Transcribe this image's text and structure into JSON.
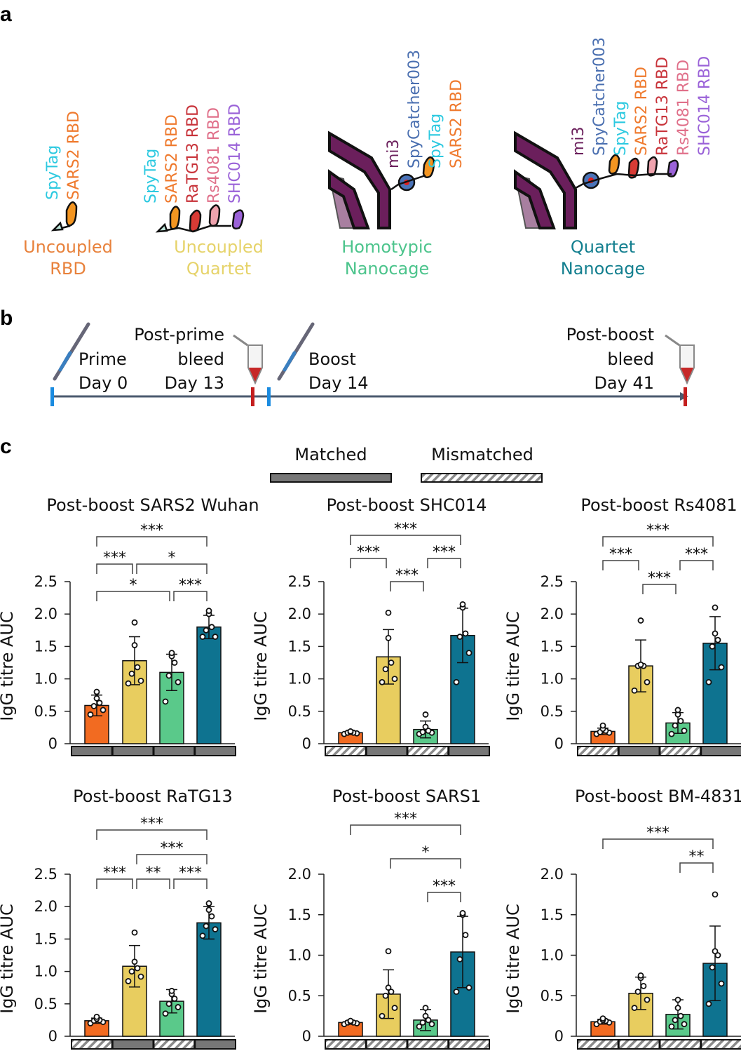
{
  "panel_labels": {
    "a": "a",
    "b": "b",
    "c": "c"
  },
  "panel_a": {
    "constructs": [
      {
        "caption1": "Uncoupled",
        "caption2": "RBD",
        "color": "#e8823c",
        "labels": [
          {
            "text": "SpyTag",
            "color": "#2cc9e0"
          },
          {
            "text": "SARS2 RBD",
            "color": "#ef7a2e"
          }
        ]
      },
      {
        "caption1": "Uncoupled",
        "caption2": "Quartet",
        "color": "#e6d36a",
        "labels": [
          {
            "text": "SpyTag",
            "color": "#2cc9e0"
          },
          {
            "text": "SARS2 RBD",
            "color": "#ef7a2e"
          },
          {
            "text": "RaTG13 RBD",
            "color": "#c8333a"
          },
          {
            "text": "Rs4081 RBD",
            "color": "#e0708a"
          },
          {
            "text": "SHC014 RBD",
            "color": "#9a62d8"
          }
        ]
      },
      {
        "caption1": "Homotypic",
        "caption2": "Nanocage",
        "color": "#4cc48c",
        "labels": [
          {
            "text": "mi3",
            "color": "#6b1f5c"
          },
          {
            "text": "SpyCatcher003",
            "color": "#4a6fb0"
          },
          {
            "text": "SpyTag",
            "color": "#2cc9e0"
          },
          {
            "text": "SARS2 RBD",
            "color": "#ef7a2e"
          }
        ]
      },
      {
        "caption1": "Quartet",
        "caption2": "Nanocage",
        "color": "#137f8f",
        "labels": [
          {
            "text": "mi3",
            "color": "#6b1f5c"
          },
          {
            "text": "SpyCatcher003",
            "color": "#4a6fb0"
          },
          {
            "text": "SpyTag",
            "color": "#2cc9e0"
          },
          {
            "text": "SARS2 RBD",
            "color": "#ef7a2e"
          },
          {
            "text": "RaTG13 RBD",
            "color": "#c8333a"
          },
          {
            "text": "Rs4081 RBD",
            "color": "#e0708a"
          },
          {
            "text": "SHC014 RBD",
            "color": "#9a62d8"
          }
        ]
      }
    ]
  },
  "panel_b": {
    "events": [
      {
        "line1": "Prime",
        "line2": "Day 0"
      },
      {
        "line0": "Post-prime",
        "line1": "bleed",
        "line2": "Day 13"
      },
      {
        "line1": "Boost",
        "line2": "Day 14"
      },
      {
        "line0": "Post-boost",
        "line1": "bleed",
        "line2": "Day 41"
      }
    ]
  },
  "legend": {
    "matched": "Matched",
    "mismatched": "Mismatched"
  },
  "colors": {
    "uncoupled_rbd": "#f26b21",
    "uncoupled_quartet": "#e8cd5f",
    "homotypic_nanocage": "#5ac98a",
    "quartet_nanocage": "#0e7390",
    "matched": "#777777"
  },
  "chart_data": [
    {
      "type": "bar",
      "title": "Post-boost SARS2 Wuhan",
      "ylabel": "IgG titre AUC",
      "ylim": [
        0,
        2.5
      ],
      "ticks": [
        "0",
        "0.5",
        "1.0",
        "1.5",
        "2.0",
        "2.5"
      ],
      "tick_values": [
        0,
        0.5,
        1,
        1.5,
        2,
        2.5
      ],
      "categories": [
        "Uncoupled RBD",
        "Uncoupled Quartet",
        "Homotypic Nanocage",
        "Quartet Nanocage"
      ],
      "means": [
        0.59,
        1.28,
        1.1,
        1.8
      ],
      "sd": [
        0.16,
        0.37,
        0.28,
        0.18
      ],
      "points": [
        [
          0.45,
          0.52,
          0.58,
          0.63,
          0.7,
          0.8
        ],
        [
          0.93,
          0.97,
          1.08,
          1.18,
          1.52,
          1.87
        ],
        [
          0.65,
          0.95,
          1.05,
          1.25,
          1.35,
          1.4
        ],
        [
          1.65,
          1.65,
          1.75,
          1.8,
          2.0,
          2.05
        ]
      ],
      "matching": [
        "matched",
        "matched",
        "matched",
        "matched"
      ],
      "significance": [
        {
          "from": 0,
          "to": 2,
          "tier": 0,
          "label": "*"
        },
        {
          "from": 2,
          "to": 3,
          "tier": 0,
          "label": "***"
        },
        {
          "from": 0,
          "to": 1,
          "tier": 1,
          "label": "***"
        },
        {
          "from": 1,
          "to": 3,
          "tier": 1,
          "label": "*"
        },
        {
          "from": 0,
          "to": 3,
          "tier": 2,
          "label": "***"
        }
      ]
    },
    {
      "type": "bar",
      "title": "Post-boost SHC014",
      "ylabel": "IgG titre AUC",
      "ylim": [
        0,
        2.5
      ],
      "ticks": [
        "0",
        "0.5",
        "1.0",
        "1.5",
        "2.0",
        "2.5"
      ],
      "tick_values": [
        0,
        0.5,
        1,
        1.5,
        2,
        2.5
      ],
      "categories": [
        "Uncoupled RBD",
        "Uncoupled Quartet",
        "Homotypic Nanocage",
        "Quartet Nanocage"
      ],
      "means": [
        0.17,
        1.34,
        0.22,
        1.67
      ],
      "sd": [
        0.02,
        0.42,
        0.13,
        0.42
      ],
      "points": [
        [
          0.15,
          0.16,
          0.17,
          0.17,
          0.18,
          0.19
        ],
        [
          0.95,
          1.0,
          1.15,
          1.25,
          1.63,
          2.02
        ],
        [
          0.15,
          0.17,
          0.18,
          0.2,
          0.26,
          0.45
        ],
        [
          0.95,
          1.4,
          1.65,
          1.7,
          2.1,
          2.15
        ]
      ],
      "matching": [
        "mismatched",
        "matched",
        "mismatched",
        "matched"
      ],
      "significance": [
        {
          "from": 1,
          "to": 2,
          "tier": 0,
          "label": "***"
        },
        {
          "from": 0,
          "to": 1,
          "tier": 1,
          "label": "***"
        },
        {
          "from": 2,
          "to": 3,
          "tier": 1,
          "label": "***"
        },
        {
          "from": 0,
          "to": 3,
          "tier": 2,
          "label": "***"
        }
      ]
    },
    {
      "type": "bar",
      "title": "Post-boost Rs4081",
      "ylabel": "IgG titre AUC",
      "ylim": [
        0,
        2.5
      ],
      "ticks": [
        "0",
        "0.5",
        "1.0",
        "1.5",
        "2.0",
        "2.5"
      ],
      "tick_values": [
        0,
        0.5,
        1,
        1.5,
        2,
        2.5
      ],
      "categories": [
        "Uncoupled RBD",
        "Uncoupled Quartet",
        "Homotypic Nanocage",
        "Quartet Nanocage"
      ],
      "means": [
        0.19,
        1.2,
        0.32,
        1.55
      ],
      "sd": [
        0.05,
        0.4,
        0.16,
        0.41
      ],
      "points": [
        [
          0.15,
          0.17,
          0.18,
          0.2,
          0.23,
          0.28
        ],
        [
          0.82,
          0.95,
          1.2,
          1.2,
          1.22,
          1.9
        ],
        [
          0.15,
          0.2,
          0.28,
          0.35,
          0.45,
          0.52
        ],
        [
          0.95,
          1.18,
          1.5,
          1.6,
          1.7,
          2.1
        ]
      ],
      "matching": [
        "mismatched",
        "matched",
        "mismatched",
        "matched"
      ],
      "significance": [
        {
          "from": 1,
          "to": 2,
          "tier": 0,
          "label": "***"
        },
        {
          "from": 0,
          "to": 1,
          "tier": 1,
          "label": "***"
        },
        {
          "from": 2,
          "to": 3,
          "tier": 1,
          "label": "***"
        },
        {
          "from": 0,
          "to": 3,
          "tier": 2,
          "label": "***"
        }
      ]
    },
    {
      "type": "bar",
      "title": "Post-boost RaTG13",
      "ylabel": "IgG titre AUC",
      "ylim": [
        0,
        2.5
      ],
      "ticks": [
        "0",
        "0.5",
        "1.0",
        "1.5",
        "2.0",
        "2.5"
      ],
      "tick_values": [
        0,
        0.5,
        1,
        1.5,
        2,
        2.5
      ],
      "categories": [
        "Uncoupled RBD",
        "Uncoupled Quartet",
        "Homotypic Nanocage",
        "Quartet Nanocage"
      ],
      "means": [
        0.24,
        1.08,
        0.54,
        1.75
      ],
      "sd": [
        0.04,
        0.32,
        0.18,
        0.25
      ],
      "points": [
        [
          0.2,
          0.22,
          0.24,
          0.25,
          0.27,
          0.3
        ],
        [
          0.85,
          0.92,
          1.0,
          1.05,
          1.15,
          1.6
        ],
        [
          0.35,
          0.45,
          0.5,
          0.58,
          0.65,
          0.7
        ],
        [
          1.55,
          1.65,
          1.7,
          1.85,
          1.95,
          2.05
        ]
      ],
      "matching": [
        "mismatched",
        "matched",
        "mismatched",
        "matched"
      ],
      "significance": [
        {
          "from": 0,
          "to": 1,
          "tier": 0,
          "label": "***"
        },
        {
          "from": 1,
          "to": 2,
          "tier": 0,
          "label": "**"
        },
        {
          "from": 2,
          "to": 3,
          "tier": 0,
          "label": "***"
        },
        {
          "from": 1,
          "to": 3,
          "tier": 1,
          "label": "***"
        },
        {
          "from": 0,
          "to": 3,
          "tier": 2,
          "label": "***"
        }
      ]
    },
    {
      "type": "bar",
      "title": "Post-boost SARS1",
      "ylabel": "IgG titre AUC",
      "ylim": [
        0,
        2.0
      ],
      "ticks": [
        "0",
        "0.5",
        "1.0",
        "1.5",
        "2.0"
      ],
      "tick_values": [
        0,
        0.5,
        1,
        1.5,
        2
      ],
      "categories": [
        "Uncoupled RBD",
        "Uncoupled Quartet",
        "Homotypic Nanocage",
        "Quartet Nanocage"
      ],
      "means": [
        0.17,
        0.52,
        0.2,
        1.04
      ],
      "sd": [
        0.02,
        0.3,
        0.13,
        0.44
      ],
      "points": [
        [
          0.15,
          0.16,
          0.17,
          0.17,
          0.18,
          0.19
        ],
        [
          0.25,
          0.35,
          0.5,
          0.55,
          0.6,
          1.05
        ],
        [
          0.12,
          0.15,
          0.17,
          0.2,
          0.25,
          0.35
        ],
        [
          0.55,
          0.6,
          0.95,
          1.25,
          1.5,
          1.52
        ]
      ],
      "matching": [
        "mismatched",
        "mismatched",
        "mismatched",
        "mismatched"
      ],
      "significance": [
        {
          "from": 2,
          "to": 3,
          "tier": 0,
          "label": "***"
        },
        {
          "from": 1,
          "to": 3,
          "tier": 1,
          "label": "*"
        },
        {
          "from": 0,
          "to": 3,
          "tier": 2,
          "label": "***"
        }
      ]
    },
    {
      "type": "bar",
      "title": "Post-boost BM-4831",
      "ylabel": "IgG titre AUC",
      "ylim": [
        0,
        2.0
      ],
      "ticks": [
        "0",
        "0.5",
        "1.0",
        "1.5",
        "2.0"
      ],
      "tick_values": [
        0,
        0.5,
        1,
        1.5,
        2
      ],
      "categories": [
        "Uncoupled RBD",
        "Uncoupled Quartet",
        "Homotypic Nanocage",
        "Quartet Nanocage"
      ],
      "means": [
        0.18,
        0.53,
        0.27,
        0.9
      ],
      "sd": [
        0.03,
        0.2,
        0.18,
        0.46
      ],
      "points": [
        [
          0.15,
          0.17,
          0.18,
          0.19,
          0.2,
          0.22
        ],
        [
          0.35,
          0.45,
          0.55,
          0.62,
          0.72,
          0.75
        ],
        [
          0.12,
          0.15,
          0.2,
          0.25,
          0.35,
          0.45
        ],
        [
          0.4,
          0.65,
          0.85,
          1.0,
          1.05,
          1.75
        ]
      ],
      "matching": [
        "mismatched",
        "mismatched",
        "mismatched",
        "mismatched"
      ],
      "significance": [
        {
          "from": 2,
          "to": 3,
          "tier": 0,
          "label": "**"
        },
        {
          "from": 0,
          "to": 3,
          "tier": 1,
          "label": "***"
        }
      ]
    }
  ]
}
